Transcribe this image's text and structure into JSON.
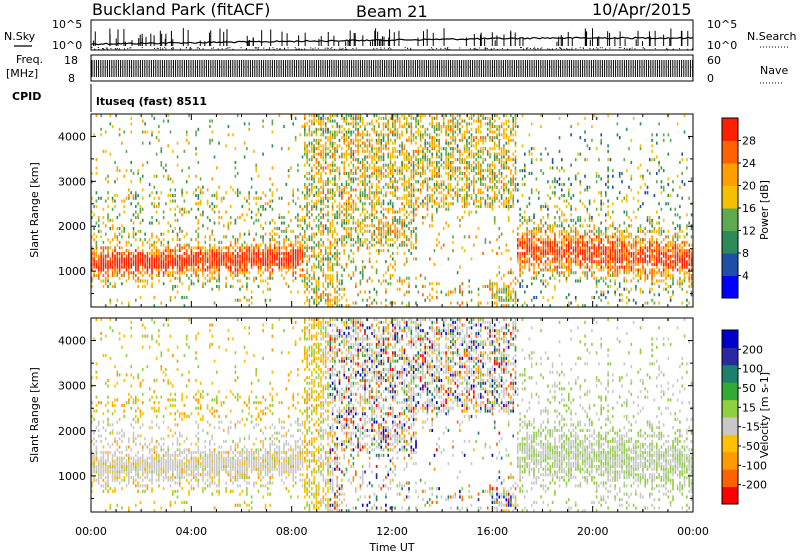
{
  "header": {
    "station": "Buckland Park (fitACF)",
    "beam": "Beam 21",
    "date": "10/Apr/2015"
  },
  "top_panels": {
    "nsky_label": "N.Sky",
    "nsearch_label": "N.Search",
    "nsky_scale_top": "10^5",
    "nsky_scale_bottom": "10^0",
    "freq_label": "Freq.",
    "freq_unit": "[MHz]",
    "freq_ticks": [
      "18",
      "8"
    ],
    "nave_label": "Nave",
    "nave_ticks": [
      "60",
      "0"
    ],
    "cpid_label": "CPID",
    "cpid_text": "ltuseq (fast) 8511"
  },
  "colors": {
    "power_scale": [
      "#0000ff",
      "#1f4fa8",
      "#2e8b57",
      "#5faa50",
      "#f5c000",
      "#ffa000",
      "#ff6000",
      "#ff2000"
    ],
    "velocity_scale": [
      "#ff0000",
      "#ff6000",
      "#ff9900",
      "#ffc000",
      "#c8c8c8",
      "#90d040",
      "#33aa33",
      "#1f7f6f",
      "#2a2aa0",
      "#0000cc"
    ],
    "ground_scatter": "#c8c8c8"
  },
  "chart_data": [
    {
      "type": "heatmap",
      "panel": "power",
      "ylabel": "Slant Range [km]",
      "x_ticks": [
        "00:00",
        "04:00",
        "08:00",
        "12:00",
        "16:00",
        "20:00",
        "00:00"
      ],
      "y_ticks": [
        1000,
        2000,
        3000,
        4000
      ],
      "ylim": [
        200,
        4500
      ],
      "xlim_hours": [
        0,
        24
      ],
      "colorbar": {
        "label": "Power [dB]",
        "ticks": [
          4,
          8,
          12,
          16,
          20,
          24,
          28
        ],
        "range": [
          0,
          32
        ]
      }
    },
    {
      "type": "heatmap",
      "panel": "velocity",
      "ylabel": "Slant Range [km]",
      "xlabel": "Time UT",
      "x_ticks": [
        "00:00",
        "04:00",
        "08:00",
        "12:00",
        "16:00",
        "20:00",
        "00:00"
      ],
      "y_ticks": [
        1000,
        2000,
        3000,
        4000
      ],
      "ylim": [
        200,
        4500
      ],
      "xlim_hours": [
        0,
        24
      ],
      "colorbar": {
        "label": "Velocity [m s-1]",
        "ticks": [
          200,
          100,
          50,
          15,
          -15,
          -50,
          -100,
          -200
        ]
      }
    }
  ]
}
